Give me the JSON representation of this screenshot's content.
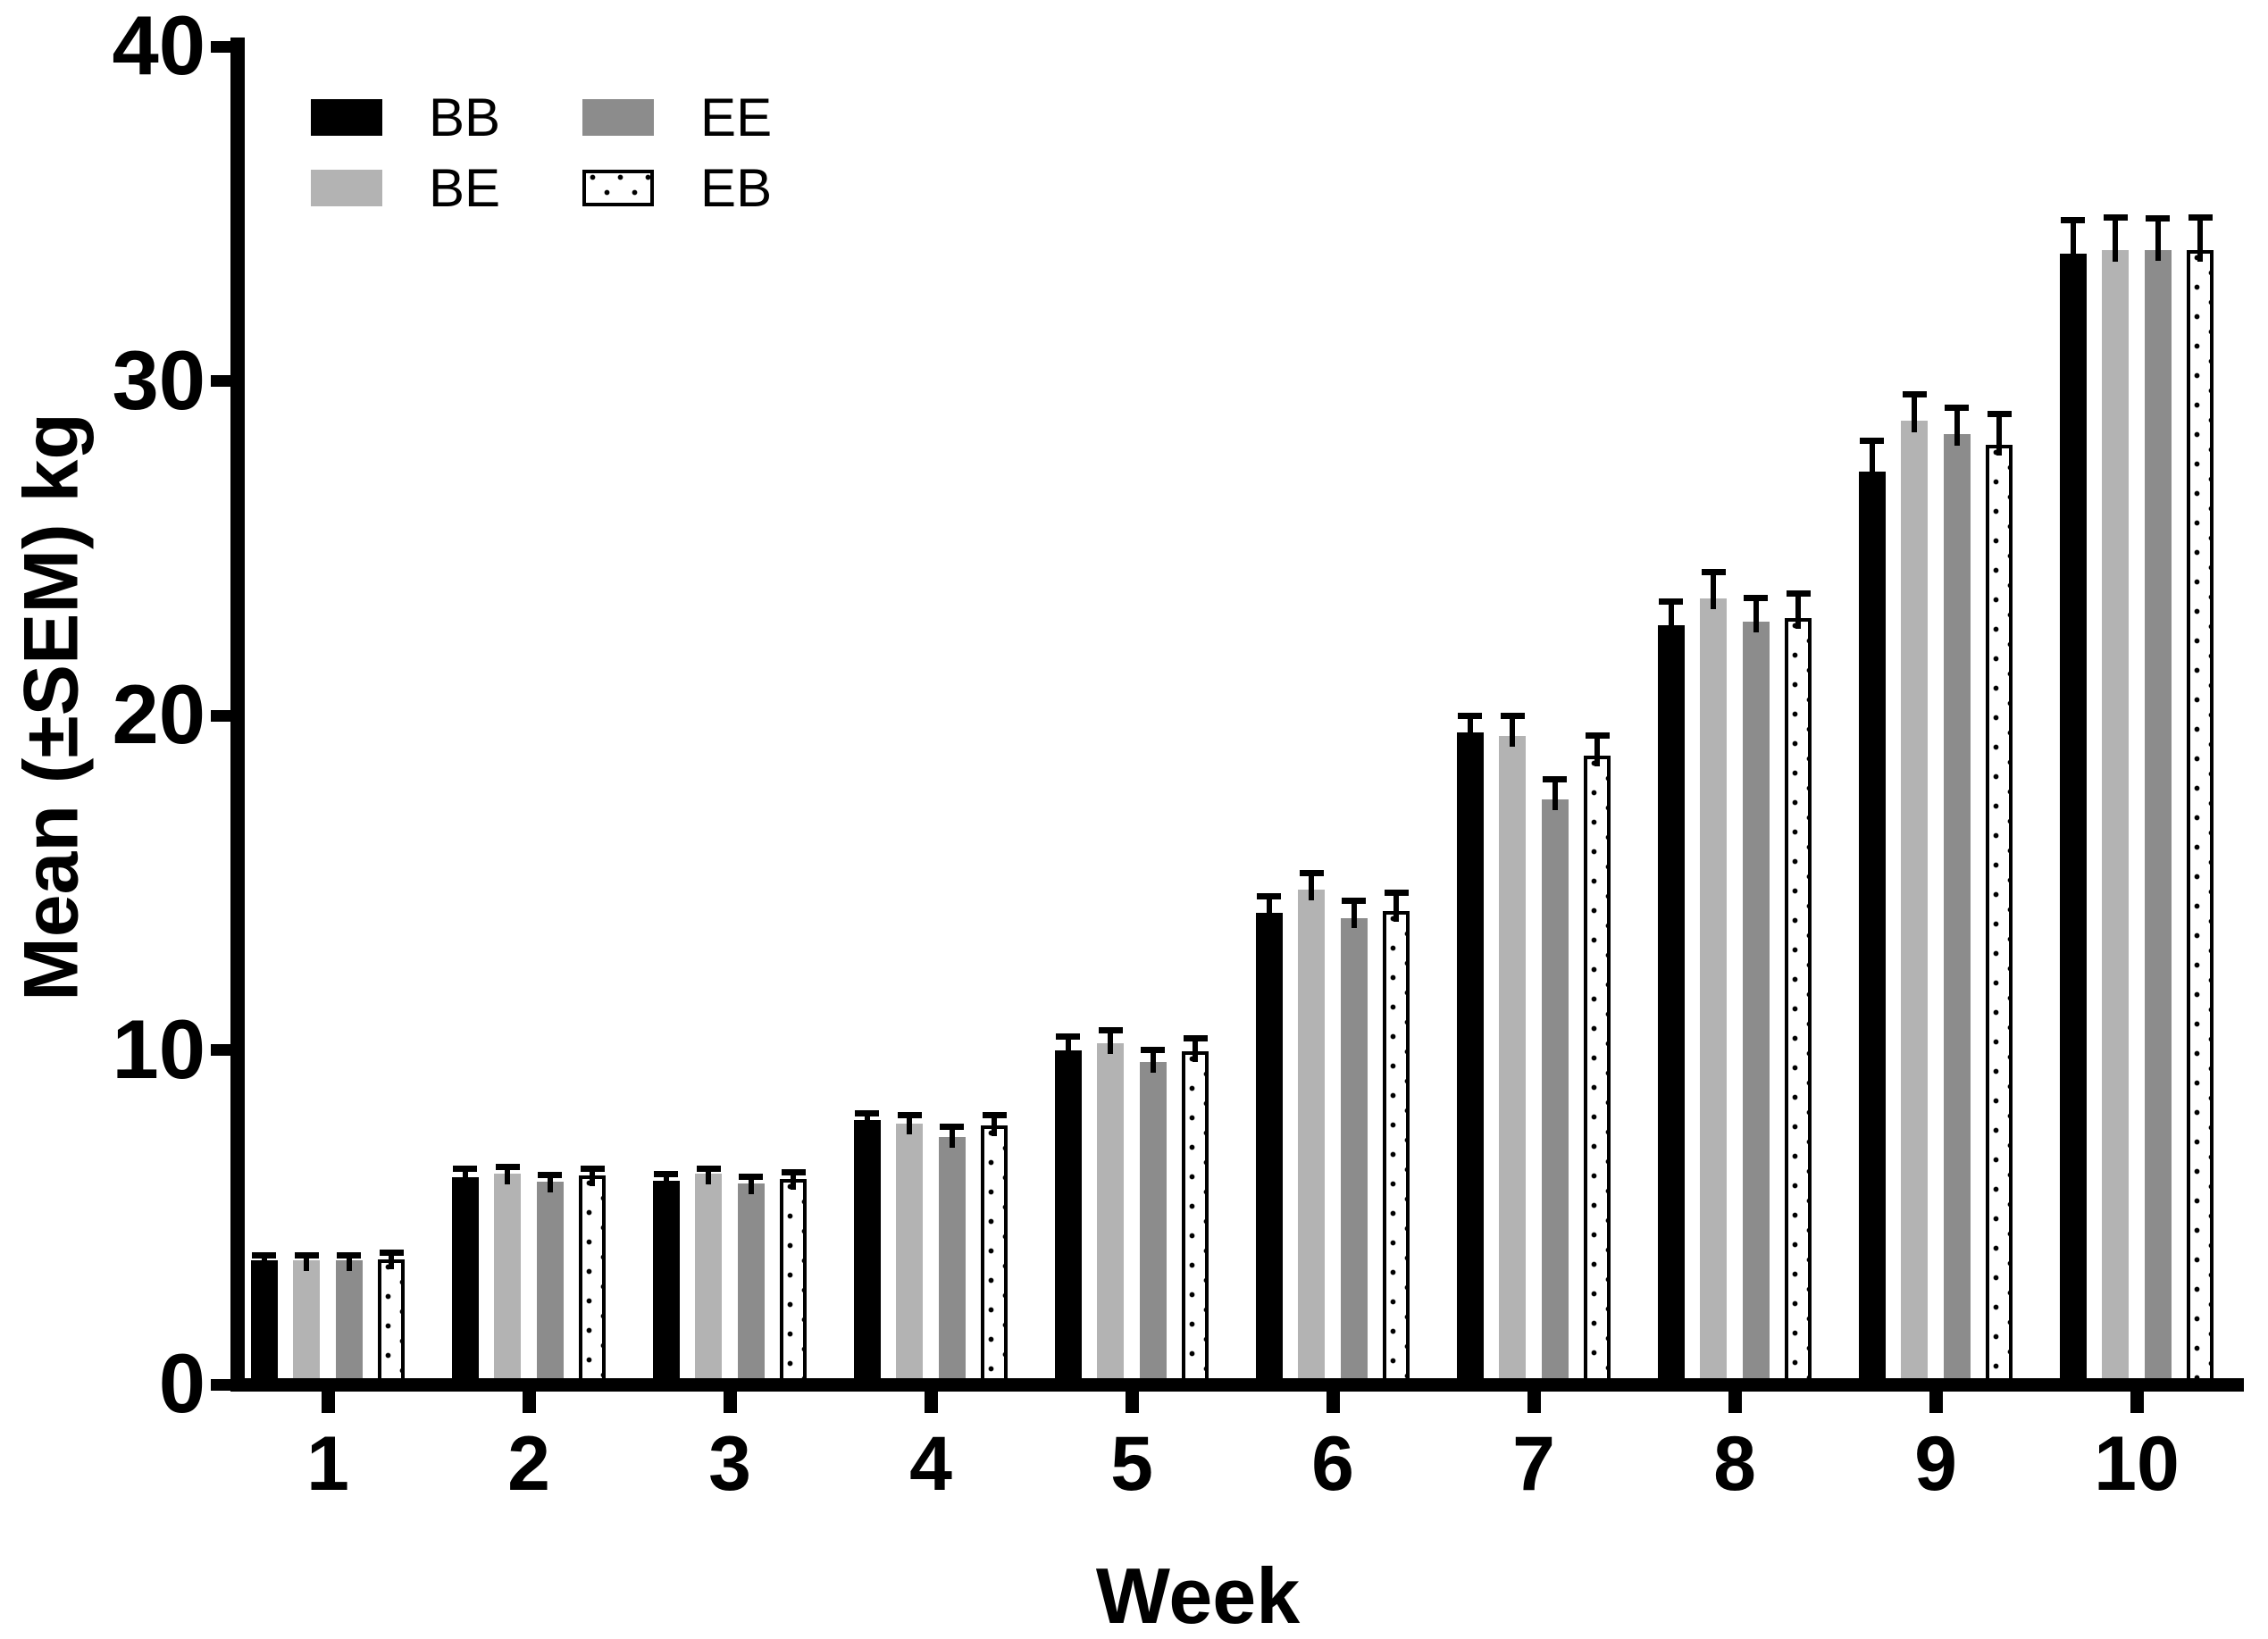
{
  "chart_data": {
    "type": "bar",
    "title": "",
    "xlabel": "Week",
    "ylabel": "Mean (±SEM) kg",
    "categories": [
      "1",
      "2",
      "3",
      "4",
      "5",
      "6",
      "7",
      "8",
      "9",
      "10"
    ],
    "ylim": [
      0,
      40
    ],
    "yticks": [
      0,
      10,
      20,
      30,
      40
    ],
    "grid": false,
    "legend_position": "top-left-inside",
    "error_bars": "SEM, upward, capped",
    "series": [
      {
        "name": "BB",
        "style": "solid-black",
        "color": "#000000",
        "values": [
          3.7,
          6.2,
          6.1,
          7.9,
          10.0,
          14.1,
          19.5,
          22.7,
          27.3,
          33.8
        ],
        "sem": [
          0.15,
          0.25,
          0.2,
          0.2,
          0.4,
          0.5,
          0.5,
          0.7,
          0.9,
          1.0
        ]
      },
      {
        "name": "BE",
        "style": "solid-light-gray",
        "color": "#b3b3b3",
        "values": [
          3.7,
          6.3,
          6.3,
          7.8,
          10.2,
          14.8,
          19.4,
          23.5,
          28.8,
          33.9
        ],
        "sem": [
          0.15,
          0.2,
          0.15,
          0.25,
          0.4,
          0.5,
          0.6,
          0.8,
          0.8,
          1.0
        ]
      },
      {
        "name": "EE",
        "style": "solid-gray",
        "color": "#8c8c8c",
        "values": [
          3.7,
          6.05,
          6.0,
          7.4,
          9.65,
          13.95,
          17.5,
          22.8,
          28.4,
          33.9
        ],
        "sem": [
          0.15,
          0.2,
          0.2,
          0.3,
          0.35,
          0.5,
          0.6,
          0.7,
          0.8,
          0.95
        ]
      },
      {
        "name": "EB",
        "style": "dotted-white",
        "color": "#ffffff",
        "values": [
          3.75,
          6.25,
          6.15,
          7.75,
          9.95,
          14.15,
          18.8,
          22.9,
          28.1,
          33.9
        ],
        "sem": [
          0.18,
          0.2,
          0.2,
          0.3,
          0.4,
          0.55,
          0.6,
          0.75,
          0.9,
          1.0
        ]
      }
    ],
    "legend_display_order": [
      "BB",
      "EE",
      "BE",
      "EB"
    ]
  }
}
